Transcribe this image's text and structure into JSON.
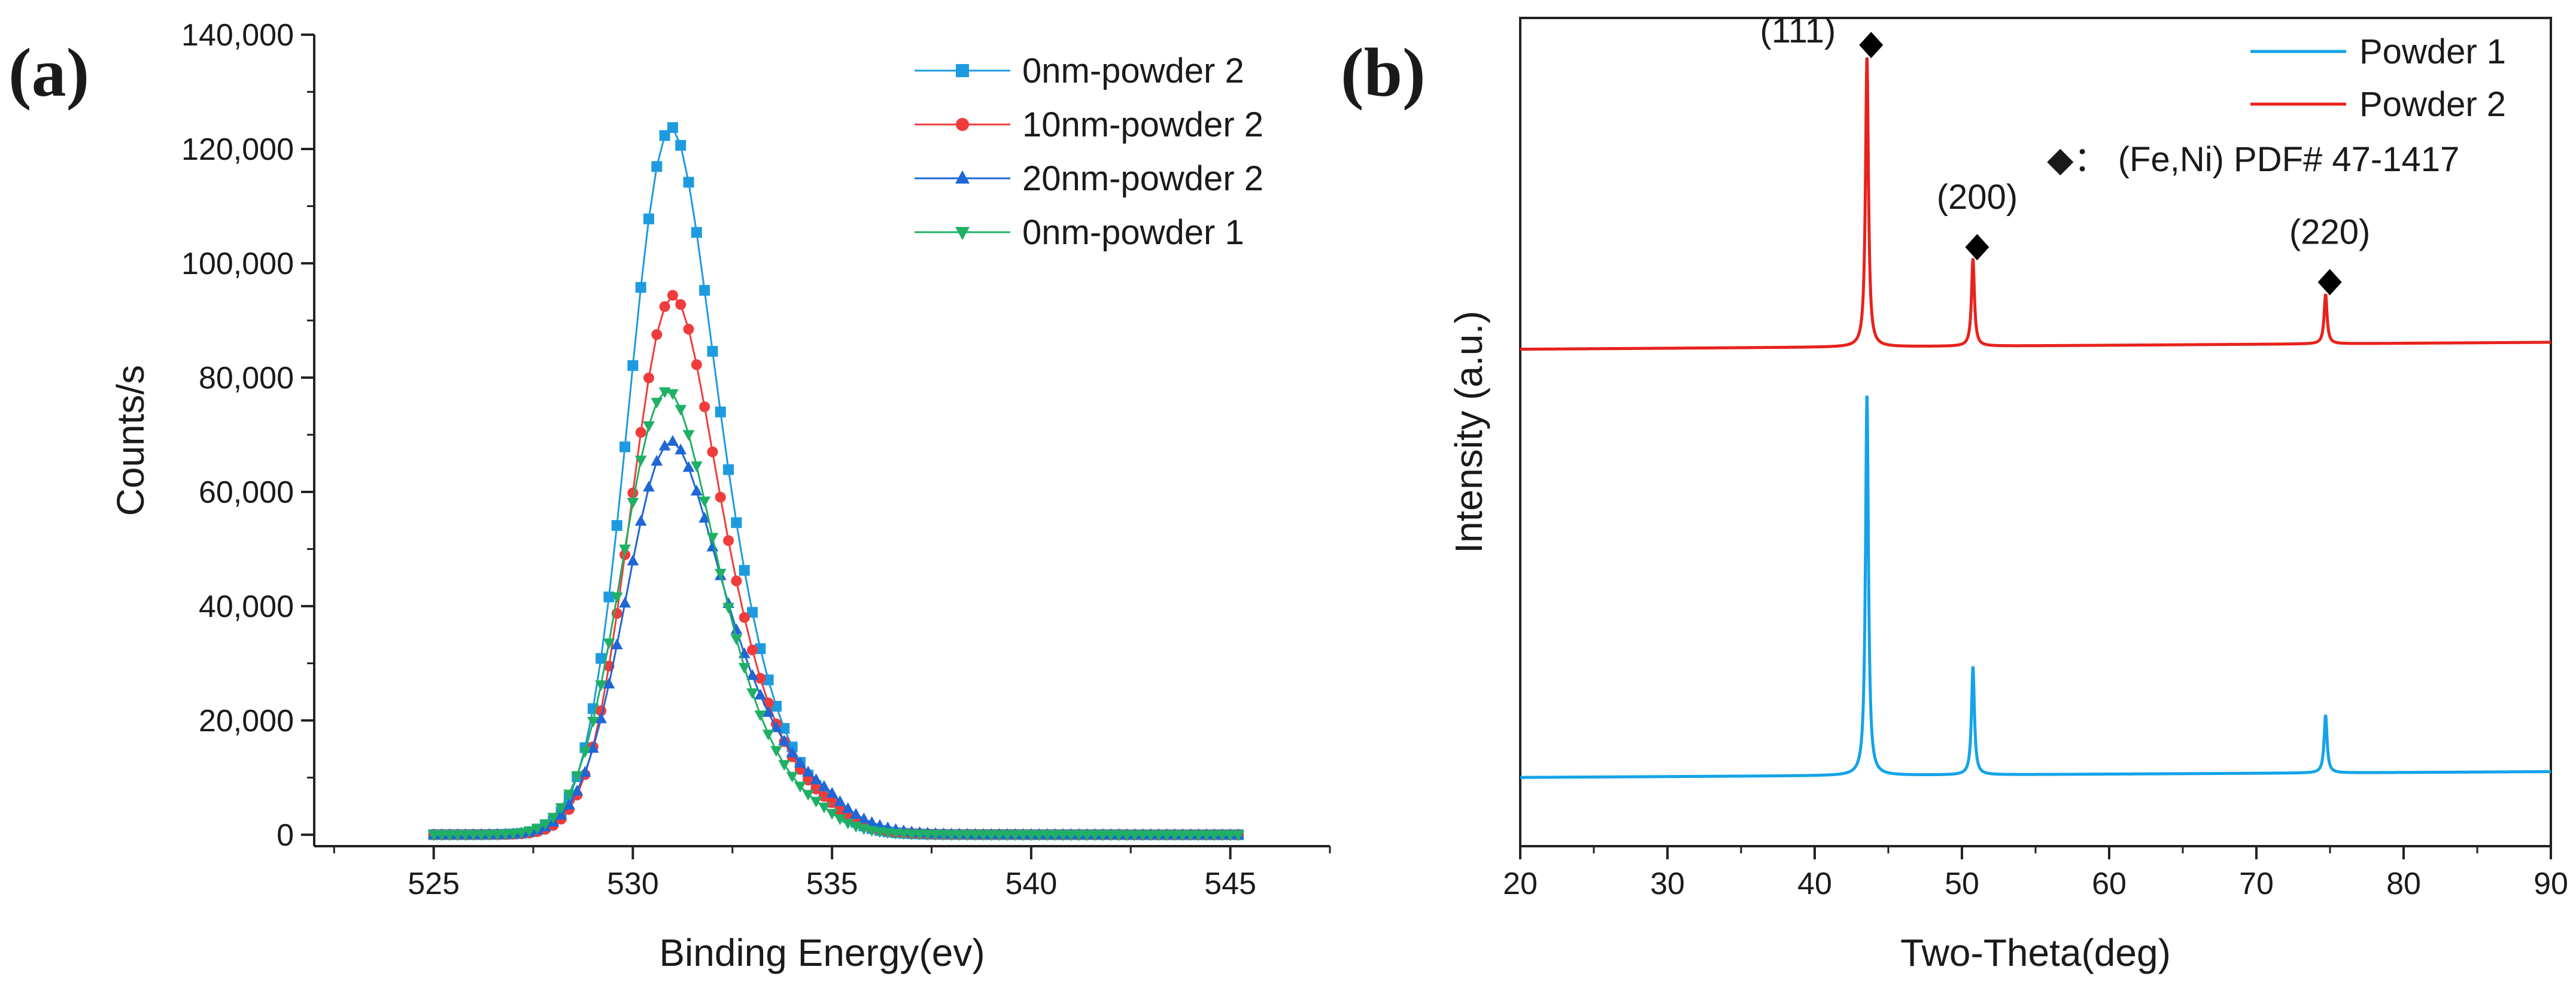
{
  "figure": {
    "panels": [
      "(a)",
      "(b)"
    ]
  },
  "chart_data": [
    {
      "type": "scatter",
      "panel": "(a)",
      "title": "",
      "xlabel": "Binding Energy(ev)",
      "ylabel": "Counts/s",
      "xlim": [
        522,
        547.5
      ],
      "ylim": [
        -2000,
        140000
      ],
      "x_ticks": [
        525,
        530,
        535,
        540,
        545
      ],
      "x_tick_labels": [
        "525",
        "530",
        "535",
        "540",
        "545"
      ],
      "y_ticks": [
        0,
        20000,
        40000,
        60000,
        80000,
        100000,
        120000,
        140000
      ],
      "y_tick_labels": [
        "0",
        "20,000",
        "40,000",
        "60,000",
        "80,000",
        "100,000",
        "120,000",
        "140,000"
      ],
      "legend_position": "top-right",
      "x_range": [
        525,
        545.2
      ],
      "x_step": 0.2,
      "series": [
        {
          "name": "0nm-powder 2",
          "marker": "square",
          "color": "#1e9be0",
          "peak": 123500,
          "center": 530.95,
          "sigma": 1.05,
          "tail": 0.55,
          "order": 0
        },
        {
          "name": "10nm-powder 2",
          "marker": "circle",
          "color": "#f03c3c",
          "peak": 94000,
          "center": 531.0,
          "sigma": 1.05,
          "tail": 0.6,
          "order": 1
        },
        {
          "name": "20nm-powder 2",
          "marker": "triangle-up",
          "color": "#1f66d6",
          "peak": 68500,
          "center": 530.95,
          "sigma": 1.12,
          "tail": 0.7,
          "order": 2
        },
        {
          "name": "0nm-powder 1",
          "marker": "triangle-down",
          "color": "#1fb066",
          "peak": 77500,
          "center": 530.85,
          "sigma": 1.12,
          "tail": 0.5,
          "order": 3
        }
      ]
    },
    {
      "type": "line",
      "panel": "(b)",
      "title": "",
      "xlabel": "Two-Theta(deg)",
      "ylabel": "Intensity (a.u.)",
      "xlim": [
        20,
        90
      ],
      "ylim": [
        0,
        100
      ],
      "x_ticks": [
        20,
        30,
        40,
        50,
        60,
        70,
        80,
        90
      ],
      "x_tick_labels": [
        "20",
        "30",
        "40",
        "50",
        "60",
        "70",
        "80",
        "90"
      ],
      "y_ticks": [],
      "legend_position": "top-right",
      "series": [
        {
          "name": "Powder 1",
          "color": "#14a3e8",
          "baseline": 8.3,
          "slope": 0.01,
          "peaks": [
            {
              "x": 43.55,
              "height": 46
            },
            {
              "x": 50.75,
              "height": 13
            },
            {
              "x": 74.7,
              "height": 7
            }
          ]
        },
        {
          "name": "Powder 2",
          "color": "#e8221c",
          "baseline": 60.0,
          "slope": 0.012,
          "peaks": [
            {
              "x": 43.55,
              "height": 35
            },
            {
              "x": 50.75,
              "height": 10.5
            },
            {
              "x": 74.7,
              "height": 6
            }
          ]
        }
      ],
      "phase_marker": {
        "symbol": "◆",
        "label": "◆： (Fe,Ni) PDF# 47-1417"
      },
      "peak_labels": [
        {
          "text": "(111)",
          "x": 43.55
        },
        {
          "text": "(200)",
          "x": 50.75
        },
        {
          "text": "(220)",
          "x": 74.7
        }
      ]
    }
  ]
}
